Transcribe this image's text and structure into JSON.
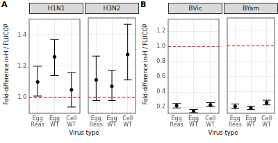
{
  "chart_data": [
    {
      "panel": "A",
      "type": "point",
      "title": "H1N1",
      "y_label": "Fold-difference in-H / FLUCOP",
      "x_label": "Virus type",
      "categories": [
        "Egg\nReas",
        "Egg\nWT",
        "Cell\nWT"
      ],
      "values": [
        1.1,
        1.26,
        1.05
      ],
      "lower": [
        1.01,
        1.14,
        0.94
      ],
      "upper": [
        1.2,
        1.37,
        1.16
      ],
      "color": "#000000",
      "ylim": [
        0.9,
        1.5
      ],
      "yticks": [
        {
          "value": 1,
          "label": "1.0"
        },
        1.2,
        1.4
      ],
      "grid": true,
      "reference_line": {
        "value": 1,
        "color": "#ff0000",
        "line_style": "dashed"
      }
    },
    {
      "panel": "A",
      "type": "point",
      "title": "H3N2",
      "tick_labels": "x",
      "categories": [
        "Egg\nReas",
        "Egg\nWT",
        "Cell\nWT"
      ],
      "values": [
        1.11,
        1.07,
        1.27
      ],
      "lower": [
        0.98,
        0.98,
        1.11
      ],
      "upper": [
        1.26,
        1.17,
        1.46
      ],
      "color": "#000000",
      "ylim": [
        0.9,
        1.5
      ],
      "yticks": [
        {
          "value": 1,
          "label": "1.0"
        },
        1.2,
        1.4
      ],
      "grid": true,
      "reference_line": {
        "value": 1,
        "color": "#ff0000",
        "line_style": "dashed"
      }
    },
    {
      "panel": "B",
      "type": "point",
      "title": "BVic",
      "y_label": "Fold-difference in-H / FLUCOP",
      "x_label": "Virus type",
      "categories": [
        "Egg\nReas",
        "Egg\nWT",
        "Cell\nWT"
      ],
      "values": [
        0.22,
        0.15,
        0.23
      ],
      "lower": [
        0.19,
        0.13,
        0.21
      ],
      "upper": [
        0.25,
        0.17,
        0.26
      ],
      "color": "#000000",
      "ylim": [
        0.12,
        1.36
      ],
      "yticks": [
        0.2,
        0.4,
        0.6,
        0.8,
        {
          "value": 1,
          "label": "1.0"
        },
        1.2
      ],
      "grid": true,
      "reference_line": {
        "value": 1,
        "color": "#ff0000",
        "line_style": "dashed"
      }
    },
    {
      "panel": "B",
      "type": "point",
      "title": "BYam",
      "tick_labels": "x",
      "categories": [
        "Egg\nReas",
        "Egg\nWT",
        "Cell\nWT"
      ],
      "values": [
        0.21,
        0.19,
        0.26
      ],
      "lower": [
        0.18,
        0.17,
        0.23
      ],
      "upper": [
        0.24,
        0.21,
        0.29
      ],
      "color": "#000000",
      "ylim": [
        0.12,
        1.36
      ],
      "yticks": [
        0.2,
        0.4,
        0.6,
        0.8,
        {
          "value": 1,
          "label": "1.0"
        },
        1.2
      ],
      "grid": true,
      "reference_line": {
        "value": 1,
        "color": "#ff0000",
        "line_style": "dashed"
      }
    }
  ]
}
